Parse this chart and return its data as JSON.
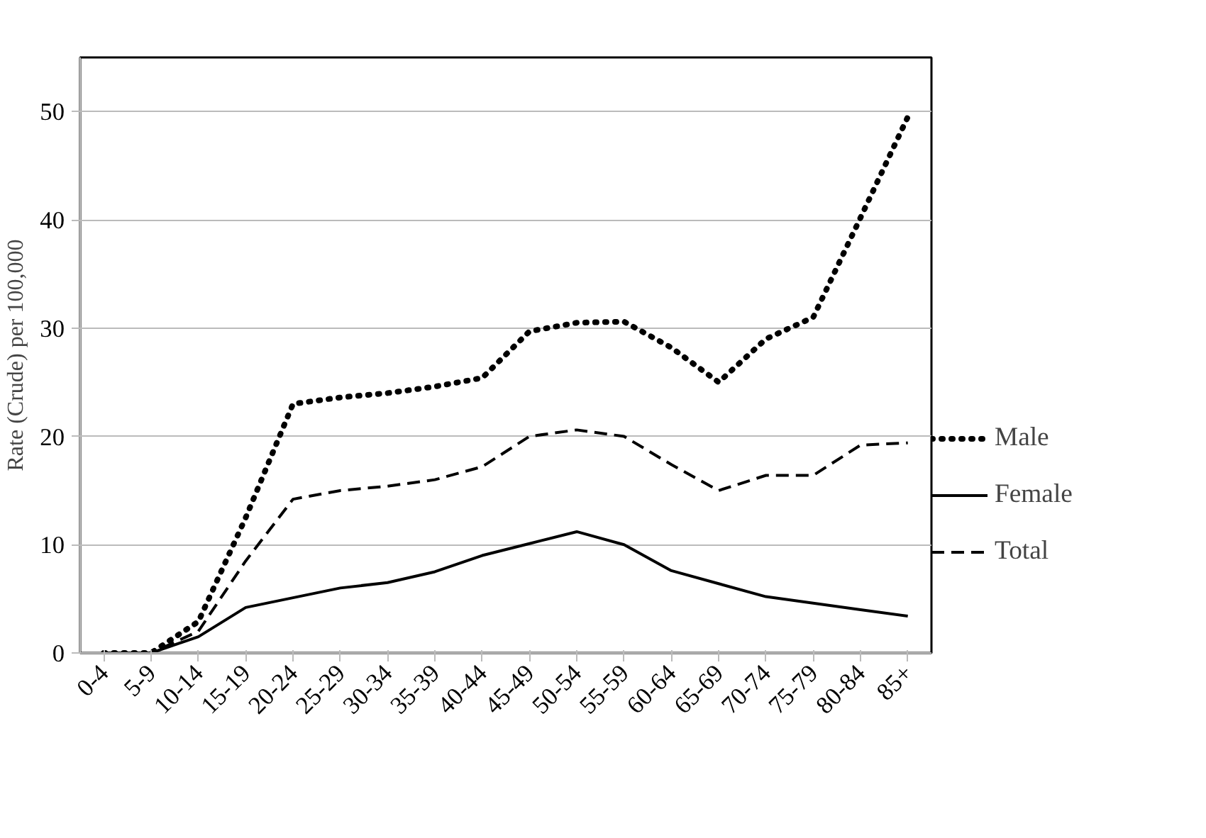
{
  "chart_data": {
    "type": "line",
    "ylabel": "Rate (Crude) per 100,000",
    "categories": [
      "0-4",
      "5-9",
      "10-14",
      "15-19",
      "20-24",
      "25-29",
      "30-34",
      "35-39",
      "40-44",
      "45-49",
      "50-54",
      "55-59",
      "60-64",
      "65-69",
      "70-74",
      "75-79",
      "80-84",
      "85+"
    ],
    "series": [
      {
        "name": "Male",
        "color": "#000000",
        "line_style": "dotted",
        "values": [
          0,
          0,
          2.9,
          12.5,
          23,
          23.6,
          24,
          24.6,
          25.4,
          29.7,
          30.5,
          30.6,
          28.2,
          25,
          29,
          31,
          40.2,
          49.5
        ]
      },
      {
        "name": "Female",
        "color": "#000000",
        "line_style": "solid",
        "values": [
          0,
          0,
          1.5,
          4.2,
          5.1,
          6,
          6.5,
          7.5,
          9,
          10.1,
          11.2,
          10,
          7.6,
          6.4,
          5.2,
          4.6,
          4,
          3.4
        ]
      },
      {
        "name": "Total",
        "color": "#000000",
        "line_style": "dashed",
        "values": [
          0,
          0,
          2,
          8.5,
          14.2,
          15,
          15.4,
          16,
          17.2,
          20,
          20.6,
          20,
          17.4,
          15,
          16.4,
          16.4,
          19.2,
          19.4
        ]
      }
    ],
    "ylim": [
      0,
      55
    ],
    "yticks": [
      0,
      10,
      20,
      30,
      40,
      50
    ],
    "grid": "y",
    "legend": "right"
  }
}
